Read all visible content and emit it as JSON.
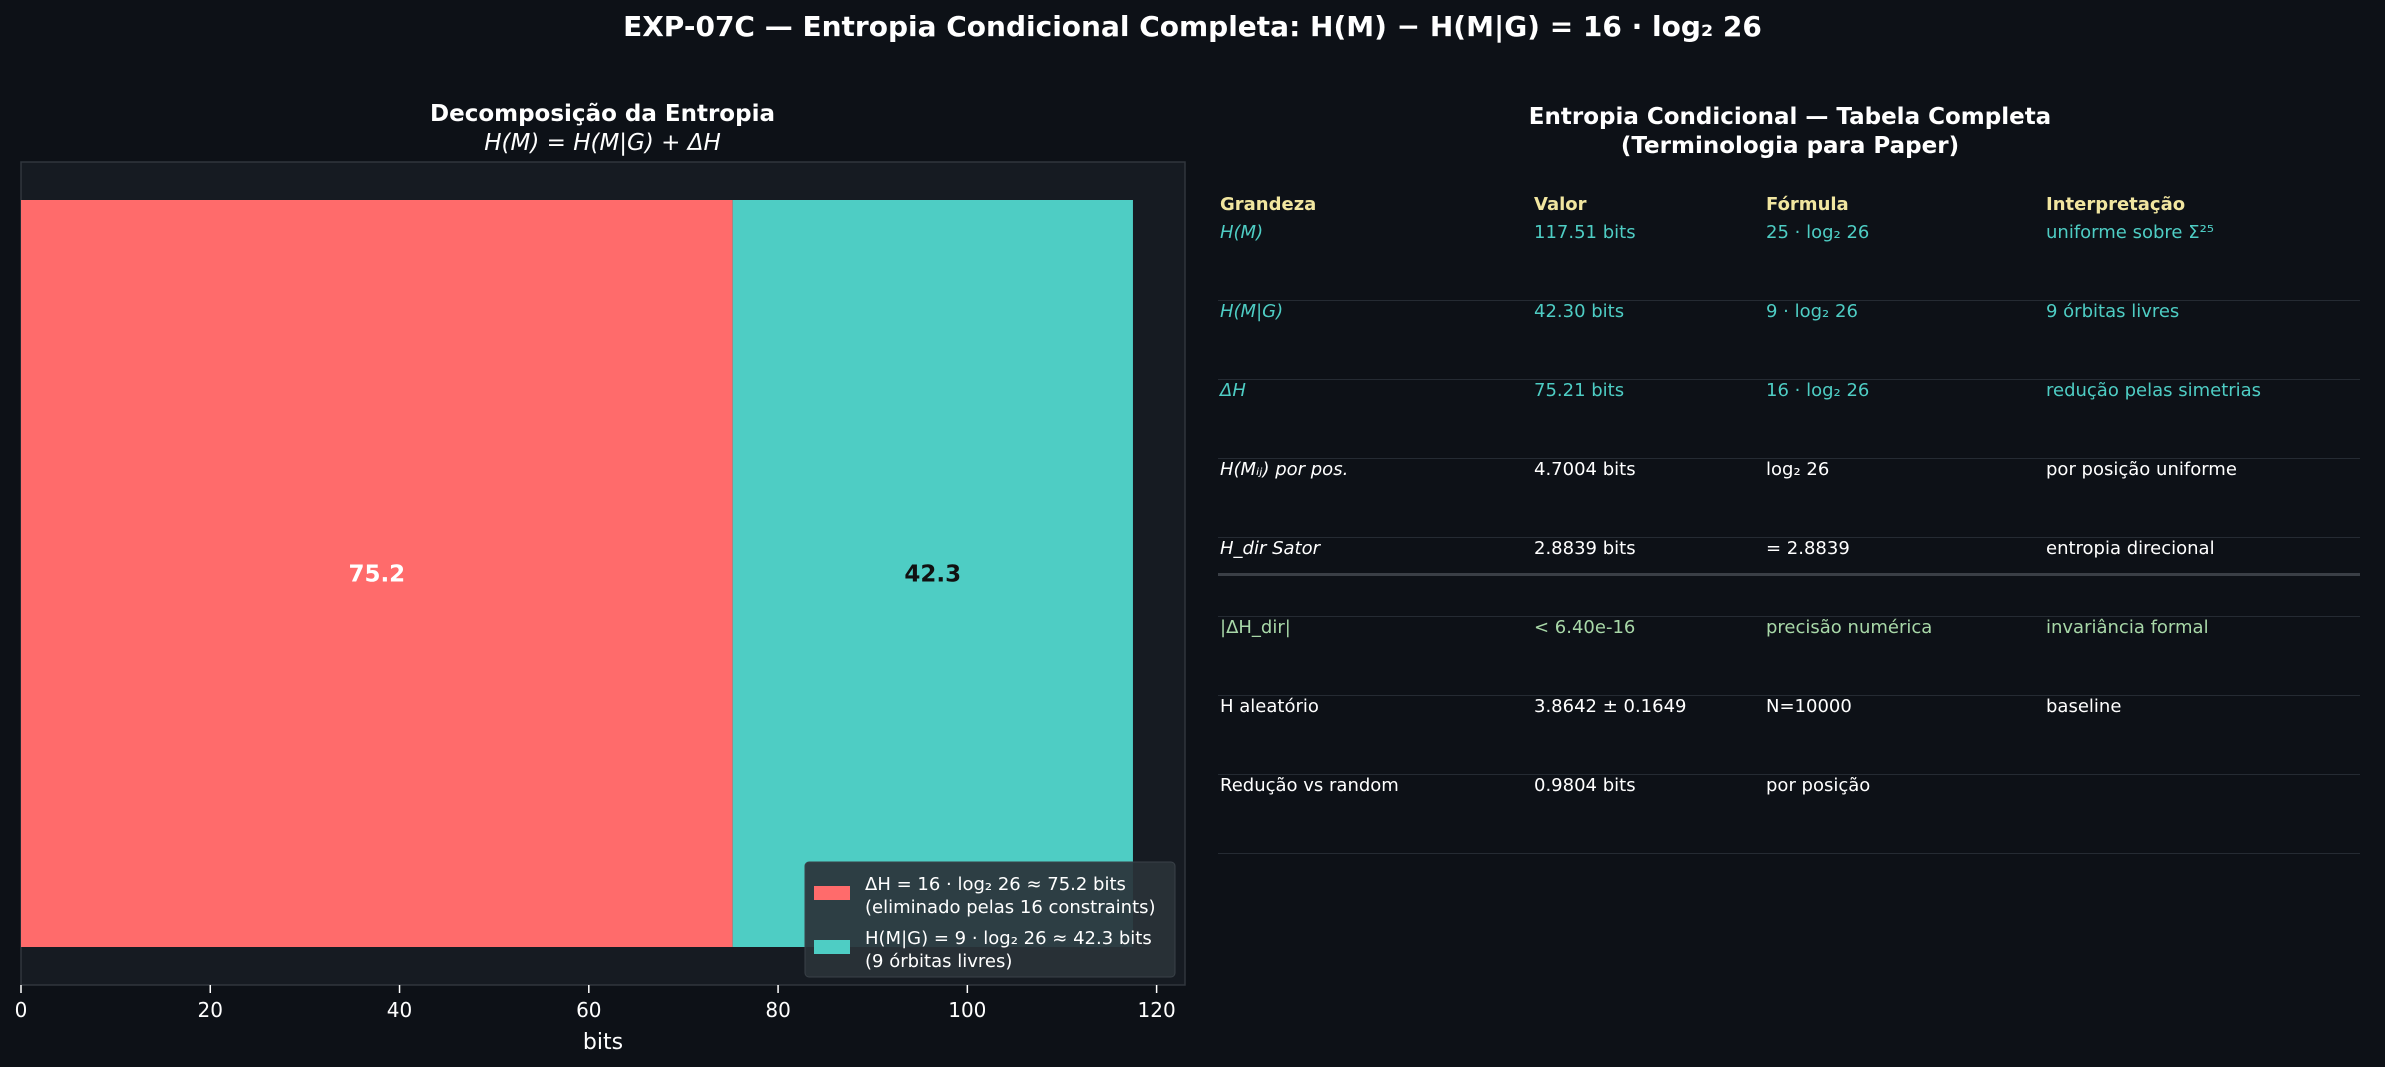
{
  "suptitle": "EXP-07C — Entropia Condicional Completa: H(M) − H(M|G) = 16 · log₂ 26",
  "colors": {
    "bg": "#0d1117",
    "axes_bg": "#161b22",
    "delta": "#ff6b6b",
    "cond": "#4ecdc4",
    "header": "#f1e6a0"
  },
  "chart_data": {
    "type": "bar",
    "orientation": "horizontal-stacked",
    "title": "Decomposição da Entropia",
    "subtitle": "H(M) = H(M|G) + ΔH",
    "xlabel": "bits",
    "xlim": [
      0,
      123
    ],
    "xticks": [
      "0",
      "20",
      "40",
      "60",
      "80",
      "100",
      "120"
    ],
    "xtick_values": [
      0,
      20,
      40,
      60,
      80,
      100,
      120
    ],
    "grid": false,
    "legend_position": "lower-right",
    "series": [
      {
        "name": "ΔH = 16 · log₂ 26 ≈ 75.2 bits",
        "name_line2": "(eliminado pelas 16 constraints)",
        "start": 0,
        "value": 75.2,
        "label": "75.2",
        "color": "#ff6b6b"
      },
      {
        "name": "H(M|G) = 9 · log₂ 26 ≈ 42.3 bits",
        "name_line2": "(9 órbitas livres)",
        "start": 75.2,
        "value": 42.3,
        "label": "42.3",
        "color": "#4ecdc4"
      }
    ]
  },
  "table": {
    "title_line1": "Entropia Condicional — Tabela Completa",
    "title_line2": "(Terminologia para Paper)",
    "headers": [
      "Grandeza",
      "Valor",
      "Fórmula",
      "Interpretação"
    ],
    "rows": [
      {
        "style": "teal",
        "cells": [
          "H(M)",
          "117.51 bits",
          "25 · log₂ 26",
          "uniforme sobre Σ²⁵"
        ]
      },
      {
        "style": "teal",
        "cells": [
          "H(M|G)",
          "42.30 bits",
          "9 · log₂ 26",
          "9 órbitas livres"
        ]
      },
      {
        "style": "teal",
        "cells": [
          "ΔH",
          "75.21 bits",
          "16 · log₂ 26",
          "redução pelas simetrias"
        ]
      },
      {
        "style": "white",
        "cells": [
          "H(Mᵢⱼ) por pos.",
          "4.7004 bits",
          "log₂ 26",
          "por posição uniforme"
        ]
      },
      {
        "style": "white",
        "cells": [
          "H_dir Sator",
          "2.8839 bits",
          "= 2.8839",
          "entropia direcional"
        ]
      },
      {
        "style": "green",
        "cells": [
          "|ΔH_dir|",
          "< 6.40e-16",
          "precisão numérica",
          "invariância formal"
        ]
      },
      {
        "style": "white",
        "cells": [
          "H aleatório",
          "3.8642 ± 0.1649",
          "N=10000",
          "baseline"
        ]
      },
      {
        "style": "white",
        "cells": [
          "Redução vs random",
          "0.9804 bits",
          "por posição",
          ""
        ]
      }
    ]
  }
}
